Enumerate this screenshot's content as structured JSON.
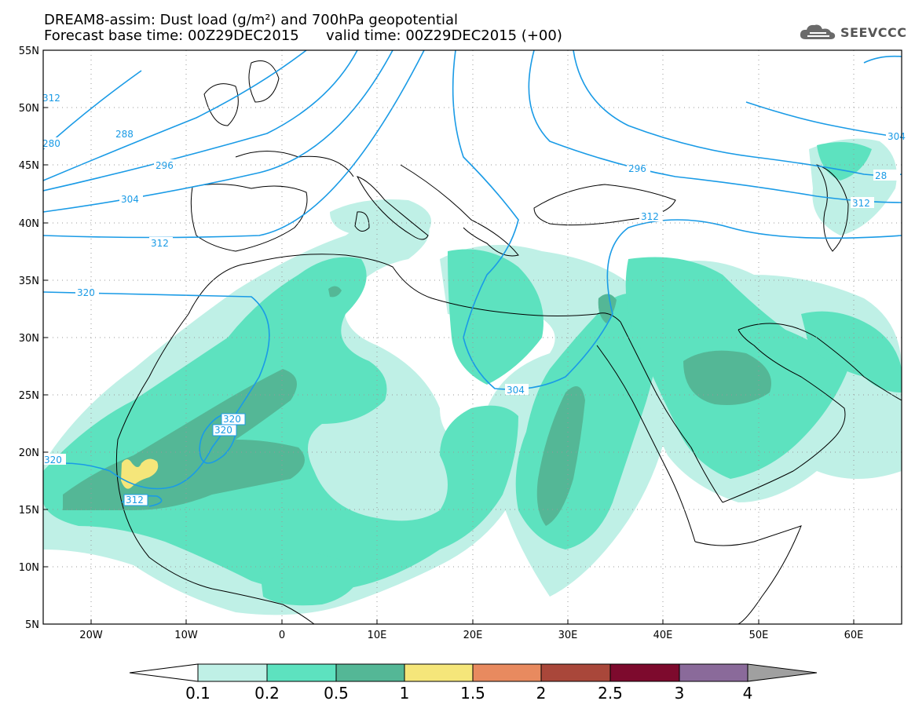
{
  "header": {
    "title_line1": "DREAM8-assim: Dust load (g/m²) and 700hPa geopotential",
    "title_line2": "Forecast base time: 00Z29DEC2015      valid time: 00Z29DEC2015 (+00)"
  },
  "logo": {
    "text": "SEEVCCC",
    "icon": "cloud-icon"
  },
  "map": {
    "lon_range": [
      -25,
      65
    ],
    "lat_range": [
      5,
      55
    ],
    "lat_labels": [
      "55N",
      "50N",
      "45N",
      "40N",
      "35N",
      "30N",
      "25N",
      "20N",
      "15N",
      "10N",
      "5N"
    ],
    "lon_labels": [
      "20W",
      "10W",
      "0",
      "10E",
      "20E",
      "30E",
      "40E",
      "50E",
      "60E"
    ],
    "isohypse_labels": [
      "312",
      "280",
      "288",
      "296",
      "304",
      "312",
      "320",
      "320",
      "320",
      "320",
      "312",
      "304",
      "296",
      "28",
      "304",
      "312",
      "312"
    ],
    "line_color": "#1a9be6",
    "coast_color": "#000000"
  },
  "colorbar": {
    "labels": [
      "0.1",
      "0.2",
      "0.5",
      "1",
      "1.5",
      "2",
      "2.5",
      "3",
      "4"
    ],
    "colors": [
      "#bff0e6",
      "#5de2bf",
      "#54b796",
      "#f5e67a",
      "#e88a5f",
      "#a9473a",
      "#7d0a2d",
      "#8a6a9a"
    ],
    "below_color": "#ffffff",
    "above_color": "#a0a0a0"
  }
}
